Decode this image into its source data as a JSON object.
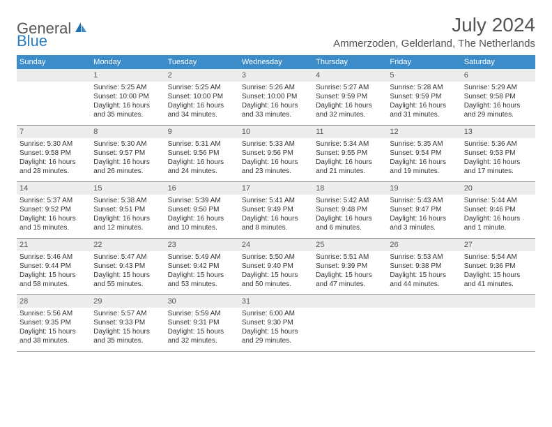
{
  "logo": {
    "part1": "General",
    "part2": "Blue"
  },
  "title": "July 2024",
  "location": "Ammerzoden, Gelderland, The Netherlands",
  "day_headers": [
    "Sunday",
    "Monday",
    "Tuesday",
    "Wednesday",
    "Thursday",
    "Friday",
    "Saturday"
  ],
  "colors": {
    "header_bg": "#3c8cc9",
    "header_text": "#ffffff",
    "daynum_bg": "#eceded",
    "text": "#333",
    "rule": "#888"
  },
  "weeks": [
    [
      {
        "num": "",
        "sunrise": "",
        "sunset": "",
        "daylight1": "",
        "daylight2": ""
      },
      {
        "num": "1",
        "sunrise": "Sunrise: 5:25 AM",
        "sunset": "Sunset: 10:00 PM",
        "daylight1": "Daylight: 16 hours",
        "daylight2": "and 35 minutes."
      },
      {
        "num": "2",
        "sunrise": "Sunrise: 5:25 AM",
        "sunset": "Sunset: 10:00 PM",
        "daylight1": "Daylight: 16 hours",
        "daylight2": "and 34 minutes."
      },
      {
        "num": "3",
        "sunrise": "Sunrise: 5:26 AM",
        "sunset": "Sunset: 10:00 PM",
        "daylight1": "Daylight: 16 hours",
        "daylight2": "and 33 minutes."
      },
      {
        "num": "4",
        "sunrise": "Sunrise: 5:27 AM",
        "sunset": "Sunset: 9:59 PM",
        "daylight1": "Daylight: 16 hours",
        "daylight2": "and 32 minutes."
      },
      {
        "num": "5",
        "sunrise": "Sunrise: 5:28 AM",
        "sunset": "Sunset: 9:59 PM",
        "daylight1": "Daylight: 16 hours",
        "daylight2": "and 31 minutes."
      },
      {
        "num": "6",
        "sunrise": "Sunrise: 5:29 AM",
        "sunset": "Sunset: 9:58 PM",
        "daylight1": "Daylight: 16 hours",
        "daylight2": "and 29 minutes."
      }
    ],
    [
      {
        "num": "7",
        "sunrise": "Sunrise: 5:30 AM",
        "sunset": "Sunset: 9:58 PM",
        "daylight1": "Daylight: 16 hours",
        "daylight2": "and 28 minutes."
      },
      {
        "num": "8",
        "sunrise": "Sunrise: 5:30 AM",
        "sunset": "Sunset: 9:57 PM",
        "daylight1": "Daylight: 16 hours",
        "daylight2": "and 26 minutes."
      },
      {
        "num": "9",
        "sunrise": "Sunrise: 5:31 AM",
        "sunset": "Sunset: 9:56 PM",
        "daylight1": "Daylight: 16 hours",
        "daylight2": "and 24 minutes."
      },
      {
        "num": "10",
        "sunrise": "Sunrise: 5:33 AM",
        "sunset": "Sunset: 9:56 PM",
        "daylight1": "Daylight: 16 hours",
        "daylight2": "and 23 minutes."
      },
      {
        "num": "11",
        "sunrise": "Sunrise: 5:34 AM",
        "sunset": "Sunset: 9:55 PM",
        "daylight1": "Daylight: 16 hours",
        "daylight2": "and 21 minutes."
      },
      {
        "num": "12",
        "sunrise": "Sunrise: 5:35 AM",
        "sunset": "Sunset: 9:54 PM",
        "daylight1": "Daylight: 16 hours",
        "daylight2": "and 19 minutes."
      },
      {
        "num": "13",
        "sunrise": "Sunrise: 5:36 AM",
        "sunset": "Sunset: 9:53 PM",
        "daylight1": "Daylight: 16 hours",
        "daylight2": "and 17 minutes."
      }
    ],
    [
      {
        "num": "14",
        "sunrise": "Sunrise: 5:37 AM",
        "sunset": "Sunset: 9:52 PM",
        "daylight1": "Daylight: 16 hours",
        "daylight2": "and 15 minutes."
      },
      {
        "num": "15",
        "sunrise": "Sunrise: 5:38 AM",
        "sunset": "Sunset: 9:51 PM",
        "daylight1": "Daylight: 16 hours",
        "daylight2": "and 12 minutes."
      },
      {
        "num": "16",
        "sunrise": "Sunrise: 5:39 AM",
        "sunset": "Sunset: 9:50 PM",
        "daylight1": "Daylight: 16 hours",
        "daylight2": "and 10 minutes."
      },
      {
        "num": "17",
        "sunrise": "Sunrise: 5:41 AM",
        "sunset": "Sunset: 9:49 PM",
        "daylight1": "Daylight: 16 hours",
        "daylight2": "and 8 minutes."
      },
      {
        "num": "18",
        "sunrise": "Sunrise: 5:42 AM",
        "sunset": "Sunset: 9:48 PM",
        "daylight1": "Daylight: 16 hours",
        "daylight2": "and 6 minutes."
      },
      {
        "num": "19",
        "sunrise": "Sunrise: 5:43 AM",
        "sunset": "Sunset: 9:47 PM",
        "daylight1": "Daylight: 16 hours",
        "daylight2": "and 3 minutes."
      },
      {
        "num": "20",
        "sunrise": "Sunrise: 5:44 AM",
        "sunset": "Sunset: 9:46 PM",
        "daylight1": "Daylight: 16 hours",
        "daylight2": "and 1 minute."
      }
    ],
    [
      {
        "num": "21",
        "sunrise": "Sunrise: 5:46 AM",
        "sunset": "Sunset: 9:44 PM",
        "daylight1": "Daylight: 15 hours",
        "daylight2": "and 58 minutes."
      },
      {
        "num": "22",
        "sunrise": "Sunrise: 5:47 AM",
        "sunset": "Sunset: 9:43 PM",
        "daylight1": "Daylight: 15 hours",
        "daylight2": "and 55 minutes."
      },
      {
        "num": "23",
        "sunrise": "Sunrise: 5:49 AM",
        "sunset": "Sunset: 9:42 PM",
        "daylight1": "Daylight: 15 hours",
        "daylight2": "and 53 minutes."
      },
      {
        "num": "24",
        "sunrise": "Sunrise: 5:50 AM",
        "sunset": "Sunset: 9:40 PM",
        "daylight1": "Daylight: 15 hours",
        "daylight2": "and 50 minutes."
      },
      {
        "num": "25",
        "sunrise": "Sunrise: 5:51 AM",
        "sunset": "Sunset: 9:39 PM",
        "daylight1": "Daylight: 15 hours",
        "daylight2": "and 47 minutes."
      },
      {
        "num": "26",
        "sunrise": "Sunrise: 5:53 AM",
        "sunset": "Sunset: 9:38 PM",
        "daylight1": "Daylight: 15 hours",
        "daylight2": "and 44 minutes."
      },
      {
        "num": "27",
        "sunrise": "Sunrise: 5:54 AM",
        "sunset": "Sunset: 9:36 PM",
        "daylight1": "Daylight: 15 hours",
        "daylight2": "and 41 minutes."
      }
    ],
    [
      {
        "num": "28",
        "sunrise": "Sunrise: 5:56 AM",
        "sunset": "Sunset: 9:35 PM",
        "daylight1": "Daylight: 15 hours",
        "daylight2": "and 38 minutes."
      },
      {
        "num": "29",
        "sunrise": "Sunrise: 5:57 AM",
        "sunset": "Sunset: 9:33 PM",
        "daylight1": "Daylight: 15 hours",
        "daylight2": "and 35 minutes."
      },
      {
        "num": "30",
        "sunrise": "Sunrise: 5:59 AM",
        "sunset": "Sunset: 9:31 PM",
        "daylight1": "Daylight: 15 hours",
        "daylight2": "and 32 minutes."
      },
      {
        "num": "31",
        "sunrise": "Sunrise: 6:00 AM",
        "sunset": "Sunset: 9:30 PM",
        "daylight1": "Daylight: 15 hours",
        "daylight2": "and 29 minutes."
      },
      {
        "num": "",
        "sunrise": "",
        "sunset": "",
        "daylight1": "",
        "daylight2": ""
      },
      {
        "num": "",
        "sunrise": "",
        "sunset": "",
        "daylight1": "",
        "daylight2": ""
      },
      {
        "num": "",
        "sunrise": "",
        "sunset": "",
        "daylight1": "",
        "daylight2": ""
      }
    ]
  ]
}
